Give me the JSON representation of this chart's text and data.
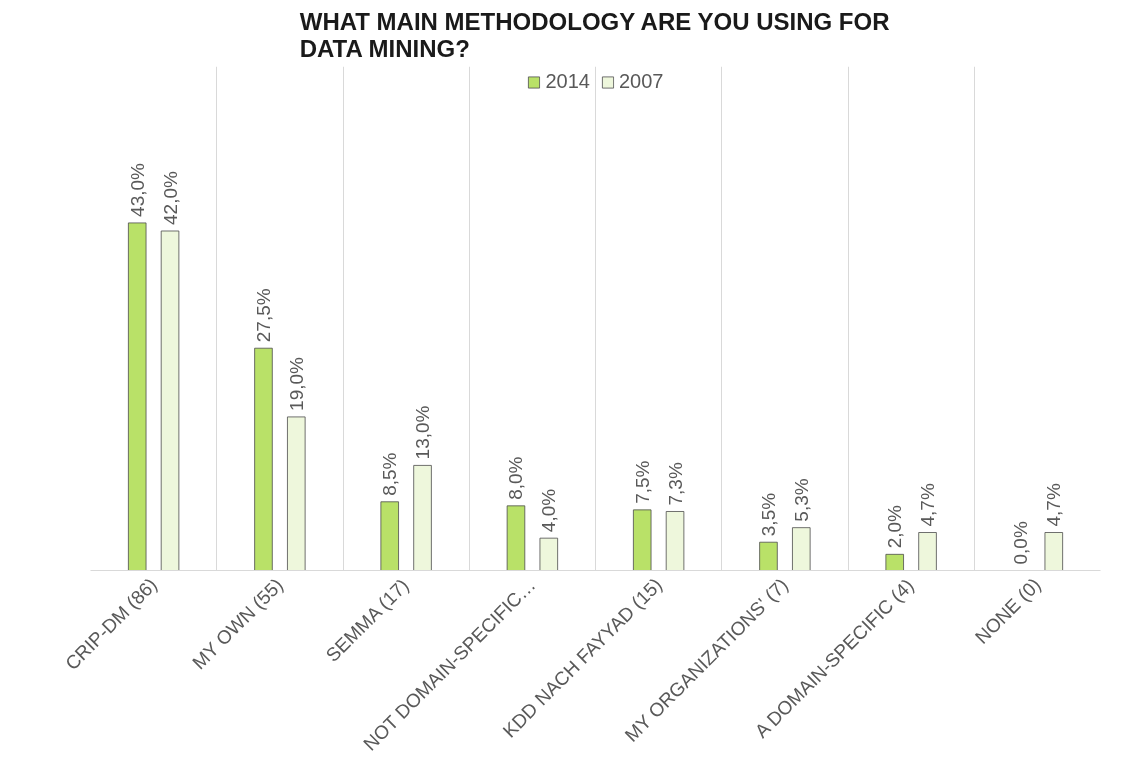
{
  "chart_data": {
    "type": "bar",
    "title": "WHAT MAIN METHODOLOGY ARE YOU USING FOR DATA MINING?",
    "categories": [
      "CRIP-DM (86)",
      "MY OWN (55)",
      "SEMMA (17)",
      "NOT DOMAIN-SPECIFIC…",
      "KDD NACH FAYYAD (15)",
      "MY ORGANIZATIONS' (7)",
      "A DOMAIN-SPECIFIC (4)",
      "NONE (0)"
    ],
    "series": [
      {
        "name": "2014",
        "color": "#b9e168",
        "values": [
          43.0,
          27.5,
          8.5,
          8.0,
          7.5,
          3.5,
          2.0,
          0.0
        ],
        "value_labels": [
          "43,0%",
          "27,5%",
          "8,5%",
          "8,0%",
          "7,5%",
          "3,5%",
          "2,0%",
          "0,0%"
        ]
      },
      {
        "name": "2007",
        "color": "#eef7dc",
        "values": [
          42.0,
          19.0,
          13.0,
          4.0,
          7.3,
          5.3,
          4.7,
          4.7
        ],
        "value_labels": [
          "42,0%",
          "19,0%",
          "13,0%",
          "4,0%",
          "7,3%",
          "5,3%",
          "4,7%",
          "4,7%"
        ]
      }
    ],
    "grid": "x",
    "legend": "top"
  }
}
